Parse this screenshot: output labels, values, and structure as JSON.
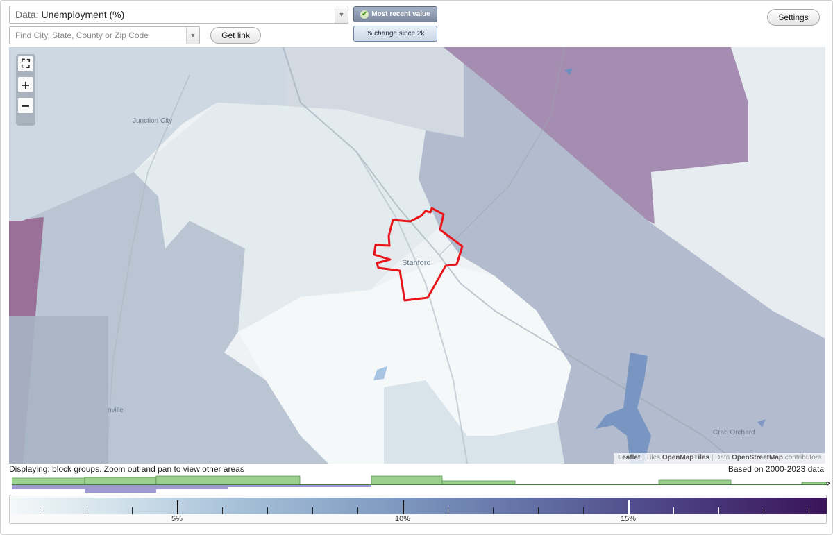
{
  "controls": {
    "data_label": "Data:",
    "data_value": "Unemployment (%)",
    "search_placeholder": "Find City, State, County or Zip Code",
    "get_link": "Get link",
    "most_recent": "Most recent value",
    "pct_change": "% change since 2k",
    "settings": "Settings"
  },
  "map": {
    "place_labels": {
      "junction_city": "Junction City",
      "stanford": "Stanford",
      "hustonville_fragment": "nville",
      "crab_orchard": "Crab Orchard"
    },
    "zoom_in": "+",
    "zoom_out": "−",
    "fullscreen": "⛶",
    "attribution": {
      "leaflet": "Leaflet",
      "sep1": " | Tiles ",
      "omt": "OpenMapTiles",
      "sep2": " | Data ",
      "osm": "OpenStreetMap",
      "contributors": " contributors"
    },
    "colors": {
      "highlight": "#e8161b",
      "lightest": "#f4f8f9",
      "light": "#e2eaee",
      "mid": "#c8d4e0",
      "blue": "#aab4cc",
      "purple": "#a48db0",
      "dark_purple": "#9b6b98"
    }
  },
  "info": {
    "displaying": "Displaying: block groups. Zoom out and pan to view other areas",
    "based_on": "Based on 2000-2023 data",
    "unknown_mark": "?"
  },
  "legend": {
    "labels": [
      "5%",
      "10%",
      "15%"
    ],
    "label_values": [
      5,
      10,
      15
    ],
    "range": [
      1.3,
      19.4
    ]
  }
}
